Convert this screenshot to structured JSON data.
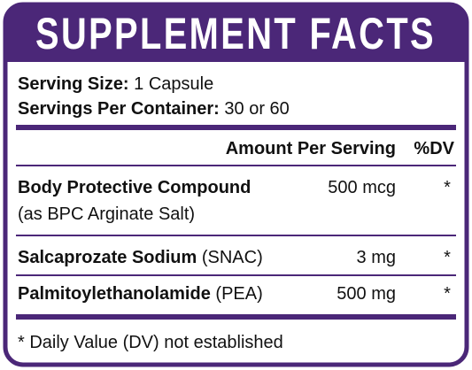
{
  "header": {
    "title": "SUPPLEMENT FACTS"
  },
  "serving": {
    "size_label": "Serving Size:",
    "size_value": "1 Capsule",
    "per_container_label": "Servings Per Container:",
    "per_container_value": "30 or 60"
  },
  "columns": {
    "amount": "Amount Per Serving",
    "dv": "%DV"
  },
  "rows": [
    {
      "name": "Body Protective Compound",
      "detail": "(as BPC Arginate Salt)",
      "amount": "500 mcg",
      "dv": "*"
    },
    {
      "name": "Salcaprozate Sodium",
      "detail": "(SNAC)",
      "amount": "3 mg",
      "dv": "*"
    },
    {
      "name": "Palmitoylethanolamide",
      "detail": "(PEA)",
      "amount": "500 mg",
      "dv": "*"
    }
  ],
  "footnote": "* Daily Value (DV) not established"
}
